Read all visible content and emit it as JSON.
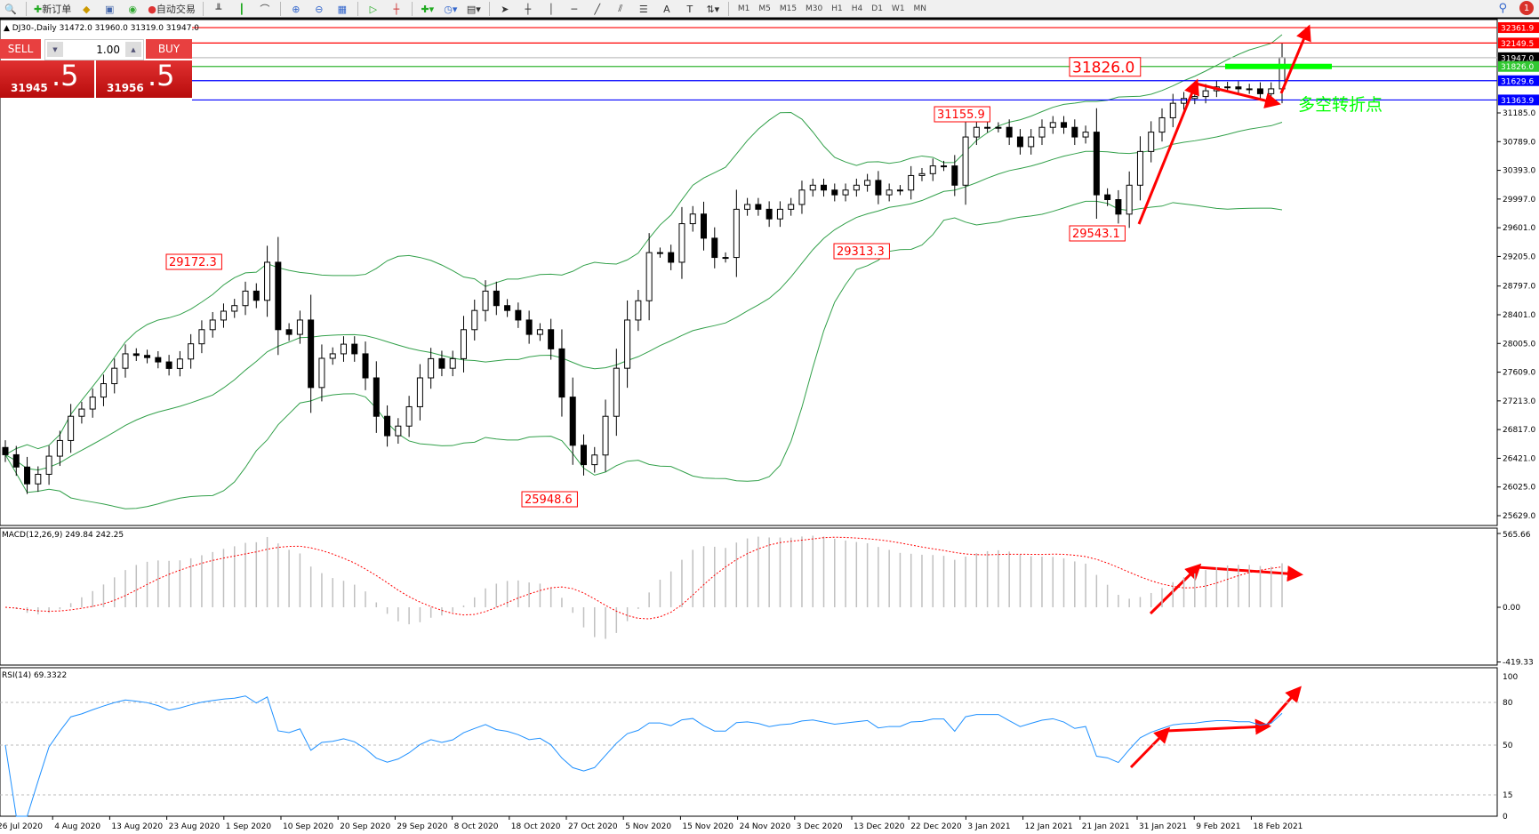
{
  "toolbar": {
    "new_order": "新订单",
    "auto_trading": "自动交易",
    "timeframes": [
      "M1",
      "M5",
      "M15",
      "M30",
      "H1",
      "H4",
      "D1",
      "W1",
      "MN"
    ],
    "notification_count": "1"
  },
  "chart": {
    "symbol_line": "DJ30-,Daily  31472.0 31960.0 31319.0 31947.0"
  },
  "trade_panel": {
    "sell_label": "SELL",
    "buy_label": "BUY",
    "lot": "1.00",
    "sell_main": "31945",
    "sell_frac": ".5",
    "buy_main": "31956",
    "buy_frac": ".5"
  },
  "price_axis": {
    "ticks": [
      "31185.0",
      "30789.0",
      "30393.0",
      "29997.0",
      "29601.0",
      "29205.0",
      "28797.0",
      "28401.0",
      "28005.0",
      "27609.0",
      "27213.0",
      "26817.0",
      "26421.0",
      "26025.0",
      "25629.0"
    ]
  },
  "levels": [
    {
      "price": "32361.9",
      "color": "#ff0000"
    },
    {
      "price": "32149.5",
      "color": "#ff0000"
    },
    {
      "price": "31947.0",
      "color": "#c0c0c0",
      "label_bg": "#000000"
    },
    {
      "price": "31826.0",
      "color": "#32b432",
      "label_bg": "#32c832"
    },
    {
      "price": "31629.6",
      "color": "#0000ff"
    },
    {
      "price": "31363.9",
      "color": "#0000ff"
    }
  ],
  "annotations": {
    "level_label": "31826.0",
    "highs_lows": [
      "31155.9",
      "29172.3",
      "29313.3",
      "29543.1",
      "25948.6"
    ],
    "turning_point": "多空转折点"
  },
  "macd": {
    "label": "MACD(12,26,9) 249.84 242.25",
    "ticks": [
      "565.66",
      "0.00",
      "-419.33"
    ]
  },
  "rsi": {
    "label": "RSI(14) 69.3322",
    "ticks": [
      "100",
      "80",
      "50",
      "15",
      "0"
    ]
  },
  "date_axis": [
    "26 Jul 2020",
    "4 Aug 2020",
    "13 Aug 2020",
    "23 Aug 2020",
    "1 Sep 2020",
    "10 Sep 2020",
    "20 Sep 2020",
    "29 Sep 2020",
    "8 Oct 2020",
    "18 Oct 2020",
    "27 Oct 2020",
    "5 Nov 2020",
    "15 Nov 2020",
    "24 Nov 2020",
    "3 Dec 2020",
    "13 Dec 2020",
    "22 Dec 2020",
    "3 Jan 2021",
    "12 Jan 2021",
    "21 Jan 2021",
    "31 Jan 2021",
    "9 Feb 2021",
    "18 Feb 2021"
  ],
  "chart_data": {
    "type": "candlestick",
    "symbol": "DJ30-",
    "timeframe": "Daily",
    "ylim": [
      25629,
      32400
    ],
    "indicators": [
      "Bollinger Bands(20,2)",
      "MACD(12,26,9)",
      "RSI(14)"
    ],
    "closes": [
      26470,
      26300,
      26068,
      26200,
      26450,
      26666,
      27000,
      27100,
      27265,
      27450,
      27663,
      27862,
      27840,
      27810,
      27750,
      27660,
      27790,
      28000,
      28195,
      28328,
      28450,
      28527,
      28727,
      28600,
      29125,
      28195,
      28130,
      28328,
      27397,
      27800,
      27862,
      27995,
      27862,
      27530,
      27000,
      26732,
      26865,
      27132,
      27530,
      27795,
      27663,
      27795,
      28195,
      28460,
      28727,
      28527,
      28460,
      28328,
      28130,
      28195,
      27930,
      27265,
      26600,
      26333,
      26466,
      27000,
      27663,
      28328,
      28594,
      29258,
      29258,
      29125,
      29657,
      29790,
      29457,
      29191,
      29191,
      29856,
      29922,
      29856,
      29723,
      29856,
      29922,
      30121,
      30188,
      30121,
      30055,
      30121,
      30188,
      30254,
      30055,
      30121,
      30121,
      30321,
      30347,
      30454,
      30454,
      30188,
      30853,
      30986,
      30986,
      30986,
      30853,
      30720,
      30853,
      30986,
      31052,
      30986,
      30853,
      30920,
      30055,
      29989,
      29789,
      30188,
      30653,
      30920,
      31118,
      31318,
      31384,
      31411,
      31490,
      31544,
      31544,
      31517,
      31517,
      31450,
      31517,
      31947
    ],
    "colors": {
      "bands": "#32a04a",
      "macd_hist": "#c0c0c0",
      "macd_signal": "#ff0000",
      "rsi": "#1e90ff",
      "arrows": "#ff0000",
      "annotation_text": "#00ff00"
    }
  }
}
